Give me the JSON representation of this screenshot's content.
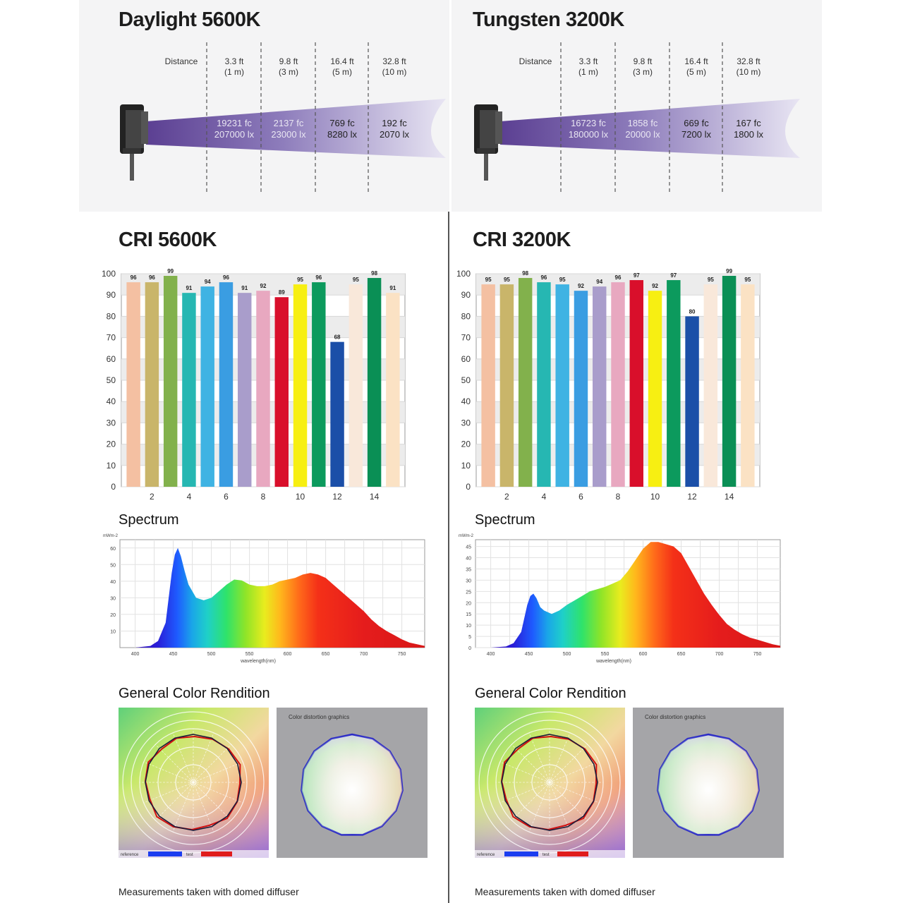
{
  "panels": [
    {
      "id": "left",
      "photometric": {
        "title": "Daylight 5600K",
        "distance_label": "Distance",
        "columns": [
          {
            "ft": "3.3 ft",
            "m": "(1 m)",
            "fc": "19231 fc",
            "lx": "207000 lx"
          },
          {
            "ft": "9.8 ft",
            "m": "(3 m)",
            "fc": "2137 fc",
            "lx": "23000 lx"
          },
          {
            "ft": "16.4 ft",
            "m": "(5 m)",
            "fc": "769 fc",
            "lx": "8280 lx"
          },
          {
            "ft": "32.8 ft",
            "m": "(10 m)",
            "fc": "192 fc",
            "lx": "2070 lx"
          }
        ],
        "beam_color": "#7b6aa8"
      },
      "cri": {
        "title": "CRI 5600K",
        "chart_data": {
          "type": "bar",
          "categories": [
            "1",
            "2",
            "3",
            "4",
            "5",
            "6",
            "7",
            "8",
            "9",
            "10",
            "11",
            "12",
            "13",
            "14",
            "15"
          ],
          "values": [
            96,
            96,
            99,
            91,
            94,
            96,
            91,
            92,
            89,
            95,
            96,
            68,
            95,
            98,
            91
          ],
          "ylim": [
            0,
            100
          ],
          "yticks": [
            "0",
            "10",
            "20",
            "30",
            "40",
            "50",
            "60",
            "70",
            "80",
            "90",
            "100"
          ],
          "xticks": [
            {
              "i": 1,
              "label": "2"
            },
            {
              "i": 3,
              "label": "4"
            },
            {
              "i": 5,
              "label": "6"
            },
            {
              "i": 7,
              "label": "8"
            },
            {
              "i": 9,
              "label": "10"
            },
            {
              "i": 11,
              "label": "12"
            },
            {
              "i": 13,
              "label": "14"
            }
          ],
          "grid": true
        }
      },
      "spectrum": {
        "title": "Spectrum",
        "chart_data": {
          "type": "area",
          "x": [
            380,
            400,
            420,
            430,
            440,
            448,
            452,
            456,
            460,
            465,
            470,
            480,
            490,
            500,
            510,
            520,
            530,
            540,
            550,
            560,
            570,
            580,
            590,
            600,
            610,
            620,
            630,
            640,
            650,
            660,
            670,
            680,
            690,
            700,
            710,
            720,
            730,
            740,
            750,
            760,
            770,
            780
          ],
          "y": [
            0,
            0,
            1,
            4,
            15,
            45,
            56,
            60,
            55,
            46,
            38,
            30,
            28.5,
            30,
            34,
            38,
            41,
            40.5,
            38,
            37,
            37,
            38,
            40,
            41,
            42,
            44,
            45,
            44,
            42,
            38,
            34,
            30,
            26,
            22,
            17,
            13,
            10,
            7.5,
            5,
            3,
            2,
            1
          ],
          "ylabel": "mWm-2",
          "xlabel": "wavelength(nm)",
          "xlim": [
            380,
            780
          ],
          "ylim": [
            0,
            65
          ],
          "yticks": [
            10,
            20,
            30,
            40,
            50,
            60
          ],
          "ytick_labels": [
            "10",
            "20",
            "30",
            "40",
            "50",
            "60"
          ],
          "xticks": [
            400,
            450,
            500,
            550,
            600,
            650,
            700,
            750
          ],
          "xtick_labels": [
            "400",
            "450",
            "500",
            "550",
            "600",
            "650",
            "700",
            "750"
          ],
          "grid": true
        }
      },
      "rendition": {
        "title": "General Color Rendition",
        "legend_reference": "reference",
        "legend_test": "test",
        "distortion_title": "Color distortion graphics"
      },
      "footnote": "Measurements taken with domed diffuser"
    },
    {
      "id": "right",
      "photometric": {
        "title": "Tungsten 3200K",
        "distance_label": "Distance",
        "columns": [
          {
            "ft": "3.3 ft",
            "m": "(1 m)",
            "fc": "16723 fc",
            "lx": "180000 lx"
          },
          {
            "ft": "9.8 ft",
            "m": "(3 m)",
            "fc": "1858 fc",
            "lx": "20000 lx"
          },
          {
            "ft": "16.4 ft",
            "m": "(5 m)",
            "fc": "669 fc",
            "lx": "7200 lx"
          },
          {
            "ft": "32.8 ft",
            "m": "(10 m)",
            "fc": "167 fc",
            "lx": "1800 lx"
          }
        ],
        "beam_color": "#7b6aa8"
      },
      "cri": {
        "title": "CRI 3200K",
        "chart_data": {
          "type": "bar",
          "categories": [
            "1",
            "2",
            "3",
            "4",
            "5",
            "6",
            "7",
            "8",
            "9",
            "10",
            "11",
            "12",
            "13",
            "14",
            "15"
          ],
          "values": [
            95,
            95,
            98,
            96,
            95,
            92,
            94,
            96,
            97,
            92,
            97,
            80,
            95,
            99,
            95
          ],
          "ylim": [
            0,
            100
          ],
          "yticks": [
            "0",
            "10",
            "20",
            "30",
            "40",
            "50",
            "60",
            "70",
            "80",
            "90",
            "100"
          ],
          "xticks": [
            {
              "i": 1,
              "label": "2"
            },
            {
              "i": 3,
              "label": "4"
            },
            {
              "i": 5,
              "label": "6"
            },
            {
              "i": 7,
              "label": "8"
            },
            {
              "i": 9,
              "label": "10"
            },
            {
              "i": 11,
              "label": "12"
            },
            {
              "i": 13,
              "label": "14"
            }
          ],
          "grid": true
        }
      },
      "spectrum": {
        "title": "Spectrum",
        "chart_data": {
          "type": "area",
          "x": [
            380,
            400,
            420,
            430,
            440,
            448,
            452,
            456,
            460,
            465,
            470,
            480,
            490,
            500,
            510,
            520,
            530,
            540,
            550,
            560,
            570,
            580,
            590,
            600,
            610,
            620,
            630,
            640,
            650,
            660,
            670,
            680,
            690,
            700,
            710,
            720,
            730,
            740,
            750,
            760,
            770,
            780
          ],
          "y": [
            0,
            0,
            0.5,
            2,
            7,
            19,
            23,
            24,
            22,
            18,
            16.5,
            15,
            16.5,
            19,
            21,
            23,
            25,
            26,
            27,
            28.5,
            30,
            34,
            39,
            44,
            47,
            47,
            46,
            45,
            42,
            36,
            30,
            24,
            19,
            14.5,
            10.5,
            8,
            6,
            4.5,
            3.5,
            2.5,
            1.5,
            0.8
          ],
          "ylabel": "mWm-2",
          "xlabel": "wavelength(nm)",
          "xlim": [
            380,
            780
          ],
          "ylim": [
            0,
            48
          ],
          "yticks": [
            0,
            5,
            10,
            15,
            20,
            25,
            30,
            35,
            40,
            45
          ],
          "ytick_labels": [
            "0",
            "5",
            "10",
            "15",
            "20",
            "25",
            "30",
            "35",
            "40",
            "45"
          ],
          "xticks": [
            400,
            450,
            500,
            550,
            600,
            650,
            700,
            750
          ],
          "xtick_labels": [
            "400",
            "450",
            "500",
            "550",
            "600",
            "650",
            "700",
            "750"
          ],
          "grid": true
        }
      },
      "rendition": {
        "title": "General Color Rendition",
        "legend_reference": "reference",
        "legend_test": "test",
        "distortion_title": "Color distortion graphics"
      },
      "footnote": "Measurements taken with domed diffuser"
    }
  ],
  "cri_bar_colors": [
    "#f4c0a2",
    "#c9b56a",
    "#82b14c",
    "#26b7b2",
    "#3fb3e3",
    "#3a9de2",
    "#a99dcb",
    "#e8a8c0",
    "#d90f2b",
    "#f7ef12",
    "#0c9a5d",
    "#1b4fa8",
    "#f9e8da",
    "#0a8f55",
    "#fbe2c4"
  ],
  "colors": {
    "reference": "#1c3df0",
    "test": "#e01c1c",
    "dist_outline": "#2929c6",
    "dist_bg": "#a5a5a8"
  }
}
